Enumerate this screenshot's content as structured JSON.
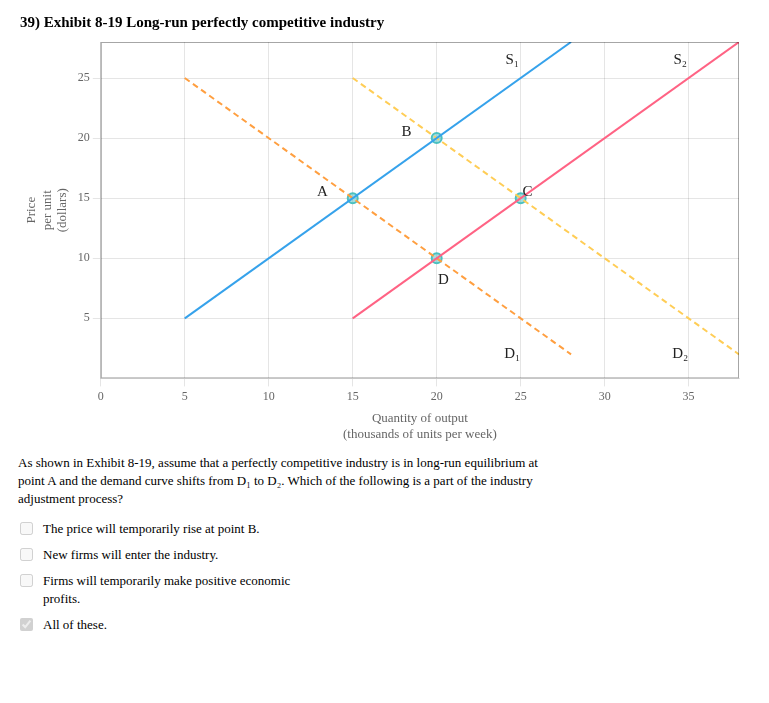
{
  "chart_data": {
    "type": "line",
    "title": "39) Exhibit 8-19 Long-run perfectly competitive industry",
    "x_label": [
      "Quantity of output",
      "(thousands of units per week)"
    ],
    "y_label": [
      "Price",
      "per unit",
      "(dollars)"
    ],
    "xlim": [
      0,
      38
    ],
    "ylim": [
      0,
      28
    ],
    "xticks": [
      0,
      5,
      10,
      15,
      20,
      25,
      30,
      35
    ],
    "yticks": [
      5,
      10,
      15,
      20,
      25
    ],
    "grid": true,
    "series": [
      {
        "type": "line",
        "line_style": "solid",
        "x": [
          5,
          28
        ],
        "values": [
          5,
          28
        ]
      },
      {
        "type": "line",
        "line_style": "solid",
        "x": [
          15,
          38
        ],
        "values": [
          5,
          28
        ]
      },
      {
        "type": "line",
        "line_style": "dashed",
        "x": [
          5,
          28
        ],
        "values": [
          25,
          2
        ]
      },
      {
        "type": "line",
        "line_style": "dashed",
        "x": [
          15,
          38
        ],
        "values": [
          25,
          2
        ]
      },
      {
        "type": "scatter",
        "marker": "circle",
        "x": [
          15,
          20,
          25,
          20
        ],
        "values": [
          15,
          20,
          15,
          10
        ]
      }
    ],
    "annotations": [
      {
        "text": "S₁",
        "x": 24.5,
        "y": 26.5
      },
      {
        "text": "S₂",
        "x": 34.5,
        "y": 26.5
      },
      {
        "text": "D₁",
        "x": 24.5,
        "y": 2.0
      },
      {
        "text": "D₂",
        "x": 34.5,
        "y": 2.0
      },
      {
        "text": "A",
        "x": 13.2,
        "y": 15.5
      },
      {
        "text": "B",
        "x": 18.2,
        "y": 20.5
      },
      {
        "text": "C",
        "x": 25.4,
        "y": 15.5
      },
      {
        "text": "D",
        "x": 20.4,
        "y": 8.2
      }
    ],
    "question": [
      "As shown in Exhibit 8-19, assume that a perfectly competitive industry is in long-run equilibrium at",
      "point A and the demand curve shifts from D₁ to D₂. Which of the following is a part of the industry",
      "adjustment process?"
    ],
    "options": [
      {
        "text": [
          "The price will temporarily rise at point B."
        ],
        "checked": false
      },
      {
        "text": [
          "New firms will enter the industry."
        ],
        "checked": false
      },
      {
        "text": [
          "Firms will temporarily make positive economic",
          "profits."
        ],
        "checked": false
      },
      {
        "text": [
          "All of these."
        ],
        "checked": true
      }
    ]
  }
}
